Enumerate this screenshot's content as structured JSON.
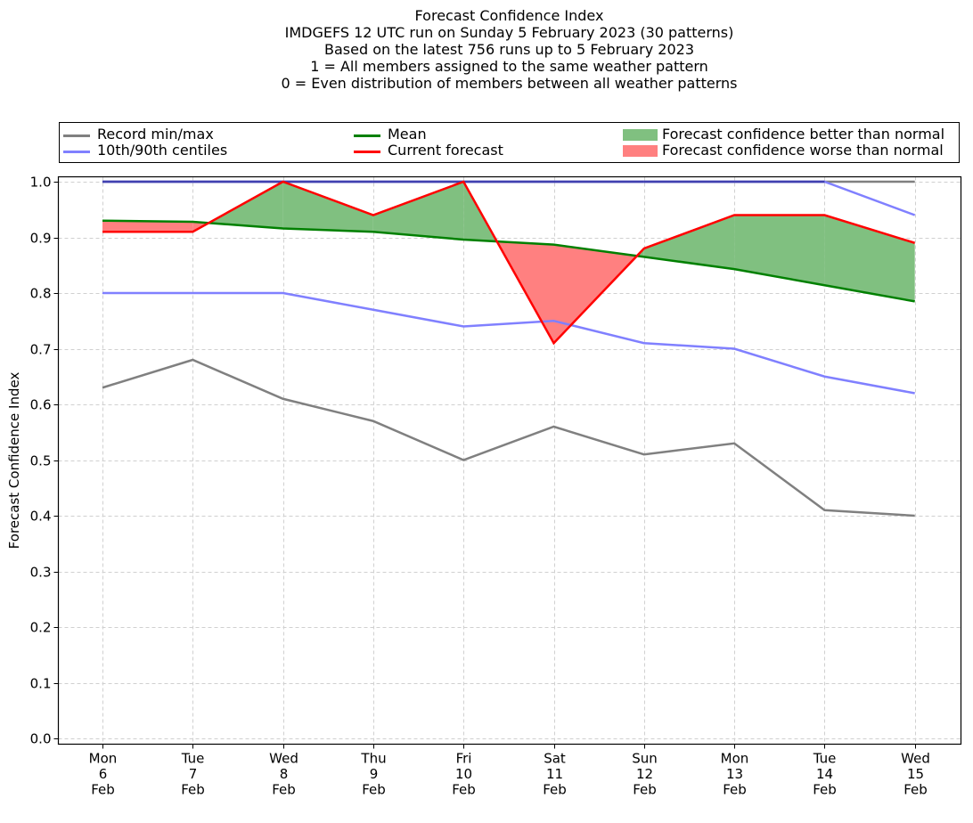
{
  "chart_data": {
    "type": "line",
    "title_lines": [
      "Forecast Confidence Index",
      "IMDGEFS 12 UTC run on Sunday 5 February 2023 (30 patterns)",
      "Based on the latest 756 runs up to 5 February 2023",
      "1 = All members assigned to the same weather pattern",
      "0 = Even distribution of members between all weather patterns"
    ],
    "ylabel": "Forecast Confidence Index",
    "xlabel": "",
    "ylim": [
      0.0,
      1.0
    ],
    "yticks": [
      "0.0",
      "0.1",
      "0.2",
      "0.3",
      "0.4",
      "0.5",
      "0.6",
      "0.7",
      "0.8",
      "0.9",
      "1.0"
    ],
    "ytick_values": [
      0.0,
      0.1,
      0.2,
      0.3,
      0.4,
      0.5,
      0.6,
      0.7,
      0.8,
      0.9,
      1.0
    ],
    "grid": true,
    "categories": [
      [
        "Mon",
        "6",
        "Feb"
      ],
      [
        "Tue",
        "7",
        "Feb"
      ],
      [
        "Wed",
        "8",
        "Feb"
      ],
      [
        "Thu",
        "9",
        "Feb"
      ],
      [
        "Fri",
        "10",
        "Feb"
      ],
      [
        "Sat",
        "11",
        "Feb"
      ],
      [
        "Sun",
        "12",
        "Feb"
      ],
      [
        "Mon",
        "13",
        "Feb"
      ],
      [
        "Tue",
        "14",
        "Feb"
      ],
      [
        "Wed",
        "15",
        "Feb"
      ]
    ],
    "legend": {
      "placement": "top",
      "entries": [
        {
          "label": "Record min/max",
          "kind": "line",
          "color": "#808080"
        },
        {
          "label": "10th/90th centiles",
          "kind": "line",
          "color": "#8080ff"
        },
        {
          "label": "Mean",
          "kind": "line",
          "color": "#008000"
        },
        {
          "label": "Current forecast",
          "kind": "line",
          "color": "#ff0000"
        },
        {
          "label": "Forecast confidence better than normal",
          "kind": "patch",
          "color": "#80c080"
        },
        {
          "label": "Forecast confidence worse than normal",
          "kind": "patch",
          "color": "#ff8080"
        }
      ]
    },
    "series": [
      {
        "name": "Record max",
        "color": "#808080",
        "values": [
          1.0,
          1.0,
          1.0,
          1.0,
          1.0,
          1.0,
          1.0,
          1.0,
          1.0,
          1.0
        ]
      },
      {
        "name": "Record min",
        "color": "#808080",
        "values": [
          0.63,
          0.68,
          0.61,
          0.57,
          0.5,
          0.56,
          0.51,
          0.53,
          0.41,
          0.4
        ]
      },
      {
        "name": "90th centile",
        "color": "#8080ff",
        "values": [
          1.0,
          1.0,
          1.0,
          1.0,
          1.0,
          1.0,
          1.0,
          1.0,
          1.0,
          0.94
        ]
      },
      {
        "name": "10th centile",
        "color": "#8080ff",
        "values": [
          0.8,
          0.8,
          0.8,
          0.77,
          0.74,
          0.75,
          0.71,
          0.7,
          0.65,
          0.62
        ]
      },
      {
        "name": "Mean",
        "color": "#008000",
        "values": [
          0.93,
          0.928,
          0.916,
          0.91,
          0.896,
          0.887,
          0.865,
          0.843,
          0.814,
          0.785
        ]
      },
      {
        "name": "Current forecast",
        "color": "#ff0000",
        "values": [
          0.91,
          0.91,
          1.0,
          0.94,
          1.0,
          0.71,
          0.88,
          0.94,
          0.94,
          0.89
        ]
      }
    ],
    "fill_better_color": "#80c080",
    "fill_worse_color": "#ff8080"
  }
}
